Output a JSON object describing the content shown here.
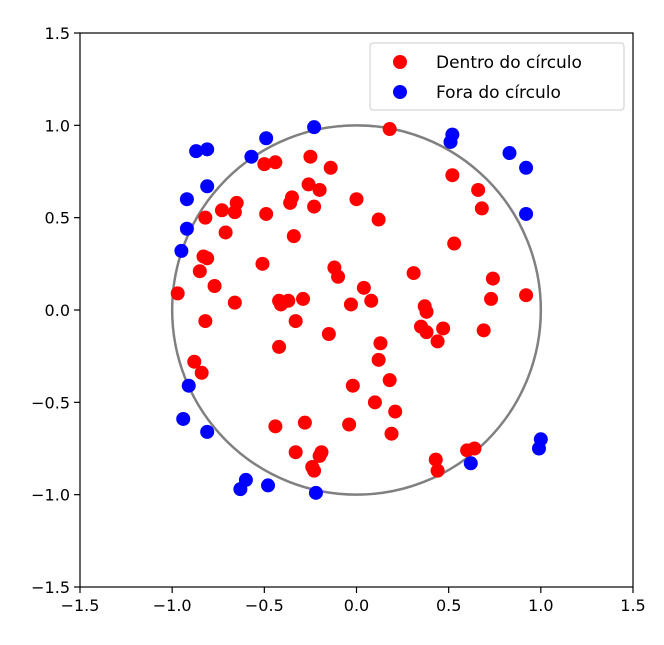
{
  "chart_data": {
    "type": "scatter",
    "title": "",
    "xlabel": "",
    "ylabel": "",
    "xlim": [
      -1.5,
      1.5
    ],
    "ylim": [
      -1.5,
      1.5
    ],
    "xticks": [
      -1.5,
      -1.0,
      -0.5,
      0.0,
      0.5,
      1.0,
      1.5
    ],
    "yticks": [
      -1.5,
      -1.0,
      -0.5,
      0.0,
      0.5,
      1.0,
      1.5
    ],
    "xtick_labels": [
      "−1.5",
      "−1.0",
      "−0.5",
      "0.0",
      "0.5",
      "1.0",
      "1.5"
    ],
    "ytick_labels": [
      "−1.5",
      "−1.0",
      "−0.5",
      "0.0",
      "0.5",
      "1.0",
      "1.5"
    ],
    "grid": false,
    "legend_position": "top-right",
    "circle": {
      "center": [
        0,
        0
      ],
      "radius": 1.0,
      "color": "#808080"
    },
    "series": [
      {
        "name": "Dentro do círculo",
        "color": "#ff0000",
        "points": [
          [
            0.18,
            0.98
          ],
          [
            -0.25,
            0.83
          ],
          [
            -0.44,
            0.8
          ],
          [
            -0.5,
            0.79
          ],
          [
            -0.14,
            0.77
          ],
          [
            -0.26,
            0.68
          ],
          [
            -0.2,
            0.65
          ],
          [
            -0.35,
            0.61
          ],
          [
            -0.36,
            0.58
          ],
          [
            -0.65,
            0.58
          ],
          [
            -0.23,
            0.56
          ],
          [
            -0.73,
            0.54
          ],
          [
            -0.66,
            0.53
          ],
          [
            -0.49,
            0.52
          ],
          [
            0.0,
            0.6
          ],
          [
            0.12,
            0.49
          ],
          [
            -0.82,
            0.5
          ],
          [
            -0.71,
            0.42
          ],
          [
            -0.34,
            0.4
          ],
          [
            -0.83,
            0.29
          ],
          [
            -0.81,
            0.28
          ],
          [
            -0.51,
            0.25
          ],
          [
            -0.12,
            0.23
          ],
          [
            -0.85,
            0.21
          ],
          [
            -0.1,
            0.18
          ],
          [
            -0.77,
            0.13
          ],
          [
            -0.97,
            0.09
          ],
          [
            -0.29,
            0.06
          ],
          [
            -0.42,
            0.05
          ],
          [
            -0.37,
            0.05
          ],
          [
            -0.66,
            0.04
          ],
          [
            -0.41,
            0.03
          ],
          [
            -0.03,
            0.03
          ],
          [
            0.04,
            0.12
          ],
          [
            0.08,
            0.05
          ],
          [
            0.31,
            0.2
          ],
          [
            0.52,
            0.73
          ],
          [
            0.66,
            0.65
          ],
          [
            0.68,
            0.55
          ],
          [
            0.53,
            0.36
          ],
          [
            0.74,
            0.17
          ],
          [
            0.73,
            0.06
          ],
          [
            0.92,
            0.08
          ],
          [
            0.37,
            0.02
          ],
          [
            0.38,
            -0.01
          ],
          [
            0.35,
            -0.09
          ],
          [
            0.38,
            -0.12
          ],
          [
            0.47,
            -0.1
          ],
          [
            0.44,
            -0.17
          ],
          [
            0.69,
            -0.11
          ],
          [
            -0.82,
            -0.06
          ],
          [
            -0.33,
            -0.06
          ],
          [
            -0.15,
            -0.13
          ],
          [
            -0.42,
            -0.2
          ],
          [
            0.13,
            -0.18
          ],
          [
            0.12,
            -0.27
          ],
          [
            -0.88,
            -0.28
          ],
          [
            -0.84,
            -0.34
          ],
          [
            0.18,
            -0.38
          ],
          [
            -0.02,
            -0.41
          ],
          [
            0.1,
            -0.5
          ],
          [
            0.21,
            -0.55
          ],
          [
            -0.44,
            -0.63
          ],
          [
            -0.28,
            -0.61
          ],
          [
            -0.04,
            -0.62
          ],
          [
            0.19,
            -0.67
          ],
          [
            -0.33,
            -0.77
          ],
          [
            -0.19,
            -0.77
          ],
          [
            -0.2,
            -0.79
          ],
          [
            -0.24,
            -0.85
          ],
          [
            -0.23,
            -0.87
          ],
          [
            0.43,
            -0.81
          ],
          [
            0.44,
            -0.87
          ],
          [
            0.6,
            -0.76
          ],
          [
            0.64,
            -0.75
          ]
        ]
      },
      {
        "name": "Fora do círculo",
        "color": "#0000ff",
        "points": [
          [
            -0.23,
            0.99
          ],
          [
            -0.49,
            0.93
          ],
          [
            -0.57,
            0.83
          ],
          [
            -0.87,
            0.86
          ],
          [
            -0.81,
            0.87
          ],
          [
            -0.81,
            0.67
          ],
          [
            -0.92,
            0.6
          ],
          [
            -0.92,
            0.44
          ],
          [
            -0.95,
            0.32
          ],
          [
            0.52,
            0.95
          ],
          [
            0.51,
            0.91
          ],
          [
            0.83,
            0.85
          ],
          [
            0.92,
            0.77
          ],
          [
            0.92,
            0.52
          ],
          [
            -0.91,
            -0.41
          ],
          [
            -0.94,
            -0.59
          ],
          [
            -0.81,
            -0.66
          ],
          [
            -0.6,
            -0.92
          ],
          [
            -0.63,
            -0.97
          ],
          [
            -0.48,
            -0.95
          ],
          [
            -0.22,
            -0.99
          ],
          [
            0.62,
            -0.83
          ],
          [
            1.0,
            -0.7
          ],
          [
            0.99,
            -0.75
          ]
        ]
      }
    ]
  }
}
